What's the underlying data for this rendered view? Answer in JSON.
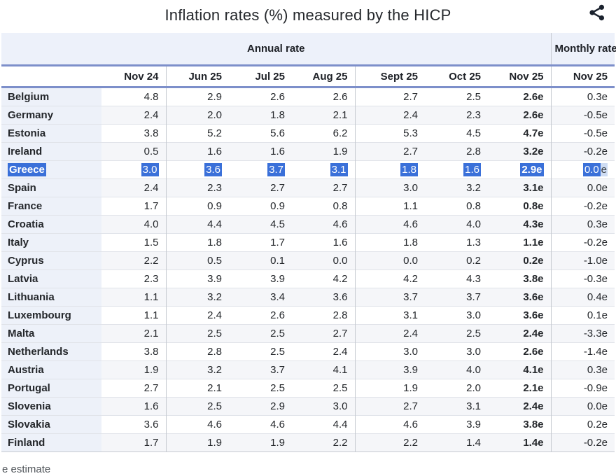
{
  "title": "Inflation rates (%) measured by the HICP",
  "footnote": "e estimate",
  "icons": {
    "share": "share-icon"
  },
  "colors": {
    "selection": "#3a70d9",
    "selection_partial": "#cedcf3",
    "header_bg": "#edf1fa",
    "country_col_bg": "#edf1f9",
    "alt_row_bg": "#f5f6f9",
    "rule_blue": "#7d8fca",
    "grid_gray": "#c6cad1"
  },
  "chart_data": {
    "type": "table",
    "title": "Inflation rates (%) measured by the HICP",
    "groups": {
      "annual": "Annual rate",
      "monthly": "Monthly rate"
    },
    "annual_columns": [
      "Nov 24",
      "Jun 25",
      "Jul 25",
      "Aug 25",
      "Sept 25",
      "Oct 25",
      "Nov 25"
    ],
    "monthly_column": "Nov 25",
    "selected_row": "Greece",
    "estimate_note": "e estimate",
    "rows": [
      {
        "country": "Belgium",
        "annual": [
          "4.8",
          "2.9",
          "2.6",
          "2.6",
          "2.7",
          "2.5",
          "2.6e"
        ],
        "monthly": "0.3e"
      },
      {
        "country": "Germany",
        "annual": [
          "2.4",
          "2.0",
          "1.8",
          "2.1",
          "2.4",
          "2.3",
          "2.6e"
        ],
        "monthly": "-0.5e"
      },
      {
        "country": "Estonia",
        "annual": [
          "3.8",
          "5.2",
          "5.6",
          "6.2",
          "5.3",
          "4.5",
          "4.7e"
        ],
        "monthly": "-0.5e"
      },
      {
        "country": "Ireland",
        "annual": [
          "0.5",
          "1.6",
          "1.6",
          "1.9",
          "2.7",
          "2.8",
          "3.2e"
        ],
        "monthly": "-0.2e"
      },
      {
        "country": "Greece",
        "annual": [
          "3.0",
          "3.6",
          "3.7",
          "3.1",
          "1.8",
          "1.6",
          "2.9e"
        ],
        "monthly": "0.0e",
        "selected": true
      },
      {
        "country": "Spain",
        "annual": [
          "2.4",
          "2.3",
          "2.7",
          "2.7",
          "3.0",
          "3.2",
          "3.1e"
        ],
        "monthly": "0.0e"
      },
      {
        "country": "France",
        "annual": [
          "1.7",
          "0.9",
          "0.9",
          "0.8",
          "1.1",
          "0.8",
          "0.8e"
        ],
        "monthly": "-0.2e"
      },
      {
        "country": "Croatia",
        "annual": [
          "4.0",
          "4.4",
          "4.5",
          "4.6",
          "4.6",
          "4.0",
          "4.3e"
        ],
        "monthly": "0.3e"
      },
      {
        "country": "Italy",
        "annual": [
          "1.5",
          "1.8",
          "1.7",
          "1.6",
          "1.8",
          "1.3",
          "1.1e"
        ],
        "monthly": "-0.2e"
      },
      {
        "country": "Cyprus",
        "annual": [
          "2.2",
          "0.5",
          "0.1",
          "0.0",
          "0.0",
          "0.2",
          "0.2e"
        ],
        "monthly": "-1.0e"
      },
      {
        "country": "Latvia",
        "annual": [
          "2.3",
          "3.9",
          "3.9",
          "4.2",
          "4.2",
          "4.3",
          "3.8e"
        ],
        "monthly": "-0.3e"
      },
      {
        "country": "Lithuania",
        "annual": [
          "1.1",
          "3.2",
          "3.4",
          "3.6",
          "3.7",
          "3.7",
          "3.6e"
        ],
        "monthly": "0.4e"
      },
      {
        "country": "Luxembourg",
        "annual": [
          "1.1",
          "2.4",
          "2.6",
          "2.8",
          "3.1",
          "3.0",
          "3.6e"
        ],
        "monthly": "0.1e"
      },
      {
        "country": "Malta",
        "annual": [
          "2.1",
          "2.5",
          "2.5",
          "2.7",
          "2.4",
          "2.5",
          "2.4e"
        ],
        "monthly": "-3.3e"
      },
      {
        "country": "Netherlands",
        "annual": [
          "3.8",
          "2.8",
          "2.5",
          "2.4",
          "3.0",
          "3.0",
          "2.6e"
        ],
        "monthly": "-1.4e"
      },
      {
        "country": "Austria",
        "annual": [
          "1.9",
          "3.2",
          "3.7",
          "4.1",
          "3.9",
          "4.0",
          "4.1e"
        ],
        "monthly": "0.3e"
      },
      {
        "country": "Portugal",
        "annual": [
          "2.7",
          "2.1",
          "2.5",
          "2.5",
          "1.9",
          "2.0",
          "2.1e"
        ],
        "monthly": "-0.9e"
      },
      {
        "country": "Slovenia",
        "annual": [
          "1.6",
          "2.5",
          "2.9",
          "3.0",
          "2.7",
          "3.1",
          "2.4e"
        ],
        "monthly": "0.0e"
      },
      {
        "country": "Slovakia",
        "annual": [
          "3.6",
          "4.6",
          "4.6",
          "4.4",
          "4.6",
          "3.9",
          "3.8e"
        ],
        "monthly": "0.2e"
      },
      {
        "country": "Finland",
        "annual": [
          "1.7",
          "1.9",
          "1.9",
          "2.2",
          "2.2",
          "1.4",
          "1.4e"
        ],
        "monthly": "-0.2e"
      }
    ]
  }
}
